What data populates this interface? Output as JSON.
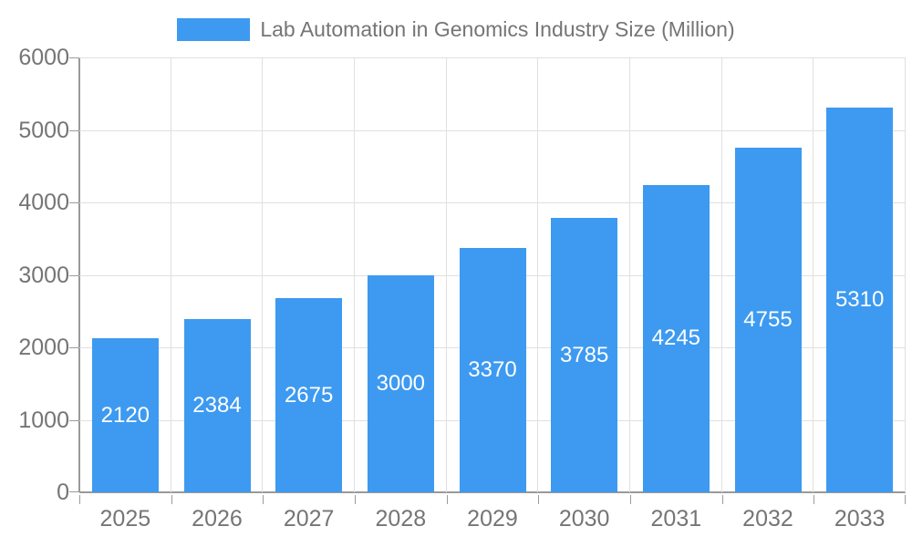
{
  "legend": {
    "label": "Lab Automation in Genomics Industry Size (Million)"
  },
  "chart_data": {
    "type": "bar",
    "title": "Lab Automation in Genomics Industry Size (Million)",
    "categories": [
      "2025",
      "2026",
      "2027",
      "2028",
      "2029",
      "2030",
      "2031",
      "2032",
      "2033"
    ],
    "values": [
      2120,
      2384,
      2675,
      3000,
      3370,
      3785,
      4245,
      4755,
      5310
    ],
    "xlabel": "",
    "ylabel": "",
    "ylim": [
      0,
      6000
    ],
    "y_ticks": [
      0,
      1000,
      2000,
      3000,
      4000,
      5000,
      6000
    ],
    "grid": true,
    "legend_position": "top",
    "value_labels": "inside-center"
  },
  "colors": {
    "bar": "#3D9AF0",
    "grid_line": "#e0e0e0",
    "axis_line": "#999999",
    "tick_text": "#757575",
    "value_label": "#ffffff",
    "background": "#ffffff"
  }
}
